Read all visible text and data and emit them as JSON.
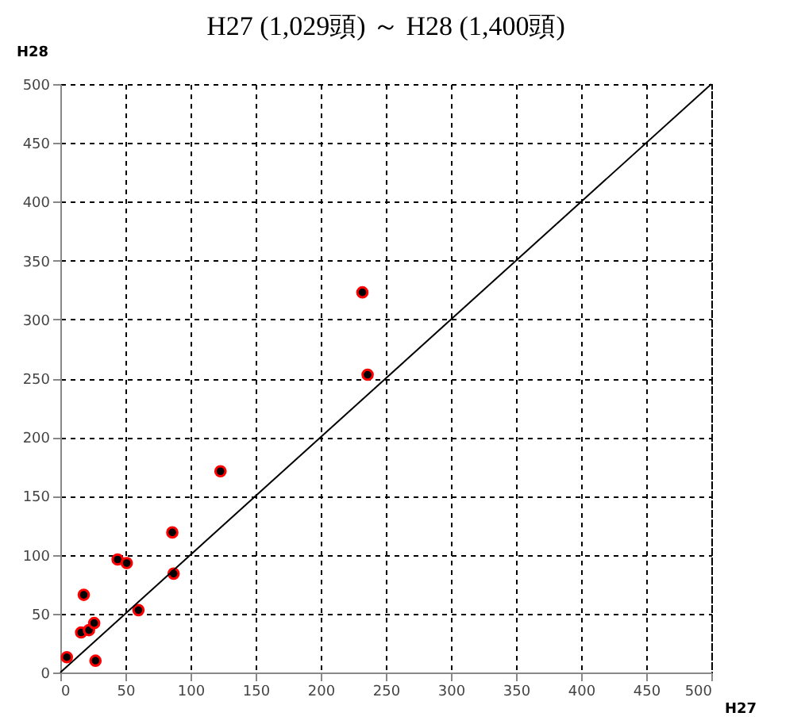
{
  "chart_data": {
    "type": "scatter",
    "title": "H27 (1,029頭) ～ H28 (1,400頭)",
    "xlabel": "H27",
    "ylabel": "H28",
    "xlim": [
      0,
      500
    ],
    "ylim": [
      0,
      500
    ],
    "xticks": [
      0,
      50,
      100,
      150,
      200,
      250,
      300,
      350,
      400,
      450,
      500
    ],
    "yticks": [
      0,
      50,
      100,
      150,
      200,
      250,
      300,
      350,
      400,
      450,
      500
    ],
    "grid": true,
    "series": [
      {
        "marker": "circle",
        "color": "#000000",
        "x": [
          5,
          27,
          16,
          22,
          26,
          18,
          44,
          51,
          60,
          87,
          86,
          123,
          232,
          236
        ],
        "values": [
          13,
          10,
          34,
          36,
          42,
          66,
          96,
          93,
          53,
          84,
          119,
          171,
          323,
          253
        ]
      },
      {
        "type": "line",
        "marker": "none",
        "line_style": "solid",
        "color": "#000000",
        "x": [
          0,
          500
        ],
        "values": [
          0,
          500
        ]
      }
    ]
  }
}
